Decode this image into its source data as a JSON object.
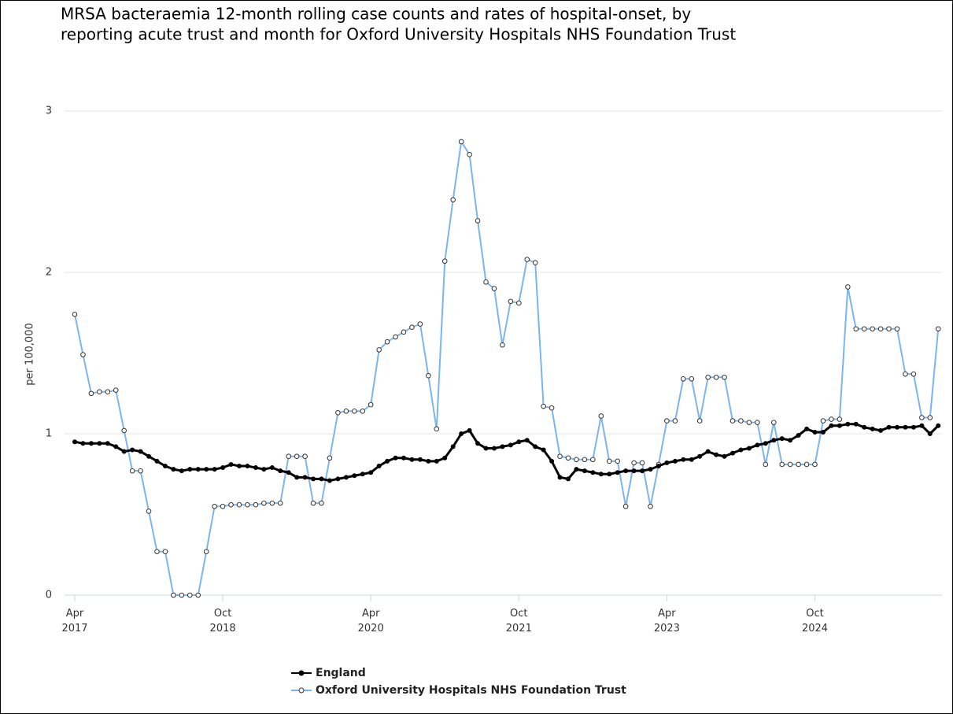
{
  "chart_data": {
    "type": "line",
    "title": [
      "MRSA bacteraemia 12-month rolling case counts and rates of hospital-onset, by",
      "reporting acute trust and month for Oxford University Hospitals NHS Foundation Trust"
    ],
    "y_label": "per 100,000",
    "x": [
      "2017-04",
      "2017-05",
      "2017-06",
      "2017-07",
      "2017-08",
      "2017-09",
      "2017-10",
      "2017-11",
      "2017-12",
      "2018-01",
      "2018-02",
      "2018-03",
      "2018-04",
      "2018-05",
      "2018-06",
      "2018-07",
      "2018-08",
      "2018-09",
      "2018-10",
      "2018-11",
      "2018-12",
      "2019-01",
      "2019-02",
      "2019-03",
      "2019-04",
      "2019-05",
      "2019-06",
      "2019-07",
      "2019-08",
      "2019-09",
      "2019-10",
      "2019-11",
      "2019-12",
      "2020-01",
      "2020-02",
      "2020-03",
      "2020-04",
      "2020-05",
      "2020-06",
      "2020-07",
      "2020-08",
      "2020-09",
      "2020-10",
      "2020-11",
      "2020-12",
      "2021-01",
      "2021-02",
      "2021-03",
      "2021-04",
      "2021-05",
      "2021-06",
      "2021-07",
      "2021-08",
      "2021-09",
      "2021-10",
      "2021-11",
      "2021-12",
      "2022-01",
      "2022-02",
      "2022-03",
      "2022-04",
      "2022-05",
      "2022-06",
      "2022-07",
      "2022-08",
      "2022-09",
      "2022-10",
      "2022-11",
      "2022-12",
      "2023-01",
      "2023-02",
      "2023-03",
      "2023-04",
      "2023-05",
      "2023-06",
      "2023-07",
      "2023-08",
      "2023-09",
      "2023-10",
      "2023-11",
      "2023-12",
      "2024-01",
      "2024-02",
      "2024-03",
      "2024-04",
      "2024-05",
      "2024-06",
      "2024-07",
      "2024-08",
      "2024-09",
      "2024-10",
      "2024-11",
      "2024-12",
      "2025-01",
      "2025-02",
      "2025-03",
      "2025-04",
      "2025-05",
      "2025-06",
      "2025-07",
      "2025-08",
      "2025-09",
      "2025-10",
      "2025-11",
      "2025-12",
      "2026-01"
    ],
    "xticks": [
      {
        "value": "2017-04",
        "label": "Apr 2017"
      },
      {
        "value": "2018-10",
        "label": "Oct 2018"
      },
      {
        "value": "2020-04",
        "label": "Apr 2020"
      },
      {
        "value": "2021-10",
        "label": "Oct 2021"
      },
      {
        "value": "2023-04",
        "label": "Apr 2023"
      },
      {
        "value": "2024-10",
        "label": "Oct 2024"
      }
    ],
    "ylim": [
      0,
      3
    ],
    "yticks": [
      0,
      1,
      2,
      3
    ],
    "grid": true,
    "series": [
      {
        "name": "England",
        "color": "#000000",
        "values": [
          0.95,
          0.94,
          0.94,
          0.94,
          0.94,
          0.92,
          0.89,
          0.9,
          0.89,
          0.86,
          0.83,
          0.8,
          0.78,
          0.77,
          0.78,
          0.78,
          0.78,
          0.78,
          0.79,
          0.81,
          0.8,
          0.8,
          0.79,
          0.78,
          0.79,
          0.77,
          0.76,
          0.73,
          0.73,
          0.72,
          0.72,
          0.71,
          0.72,
          0.73,
          0.74,
          0.75,
          0.76,
          0.8,
          0.83,
          0.85,
          0.85,
          0.84,
          0.84,
          0.83,
          0.83,
          0.85,
          0.92,
          1.0,
          1.02,
          0.94,
          0.91,
          0.91,
          0.92,
          0.93,
          0.95,
          0.96,
          0.92,
          0.9,
          0.83,
          0.73,
          0.72,
          0.78,
          0.77,
          0.76,
          0.75,
          0.75,
          0.76,
          0.77,
          0.77,
          0.77,
          0.78,
          0.8,
          0.82,
          0.83,
          0.84,
          0.84,
          0.86,
          0.89,
          0.87,
          0.86,
          0.88,
          0.9,
          0.91,
          0.93,
          0.94,
          0.96,
          0.97,
          0.96,
          0.99,
          1.03,
          1.01,
          1.01,
          1.05,
          1.05,
          1.06,
          1.06,
          1.04,
          1.03,
          1.02,
          1.04,
          1.04,
          1.04,
          1.04,
          1.05,
          1.0,
          1.05
        ]
      },
      {
        "name": "Oxford University Hospitals NHS Foundation Trust",
        "color": "#7cb5ec",
        "values": [
          1.74,
          1.49,
          1.25,
          1.26,
          1.26,
          1.27,
          1.02,
          0.77,
          0.77,
          0.52,
          0.27,
          0.27,
          0,
          0,
          0,
          0,
          0.27,
          0.55,
          0.55,
          0.56,
          0.56,
          0.56,
          0.56,
          0.57,
          0.57,
          0.57,
          0.86,
          0.86,
          0.86,
          0.57,
          0.57,
          0.85,
          1.13,
          1.14,
          1.14,
          1.14,
          1.18,
          1.52,
          1.57,
          1.6,
          1.63,
          1.66,
          1.68,
          1.36,
          1.03,
          2.07,
          2.45,
          2.81,
          2.73,
          2.32,
          1.94,
          1.9,
          1.55,
          1.82,
          1.81,
          2.08,
          2.06,
          1.17,
          1.16,
          0.86,
          0.85,
          0.84,
          0.84,
          0.84,
          1.11,
          0.83,
          0.83,
          0.55,
          0.82,
          0.82,
          0.55,
          0.81,
          1.08,
          1.08,
          1.34,
          1.34,
          1.08,
          1.35,
          1.35,
          1.35,
          1.08,
          1.08,
          1.07,
          1.07,
          0.81,
          1.07,
          0.81,
          0.81,
          0.81,
          0.81,
          0.81,
          1.08,
          1.09,
          1.09,
          1.91,
          1.65,
          1.65,
          1.65,
          1.65,
          1.65,
          1.65,
          1.37,
          1.37,
          1.1,
          1.1,
          1.65
        ]
      }
    ]
  }
}
